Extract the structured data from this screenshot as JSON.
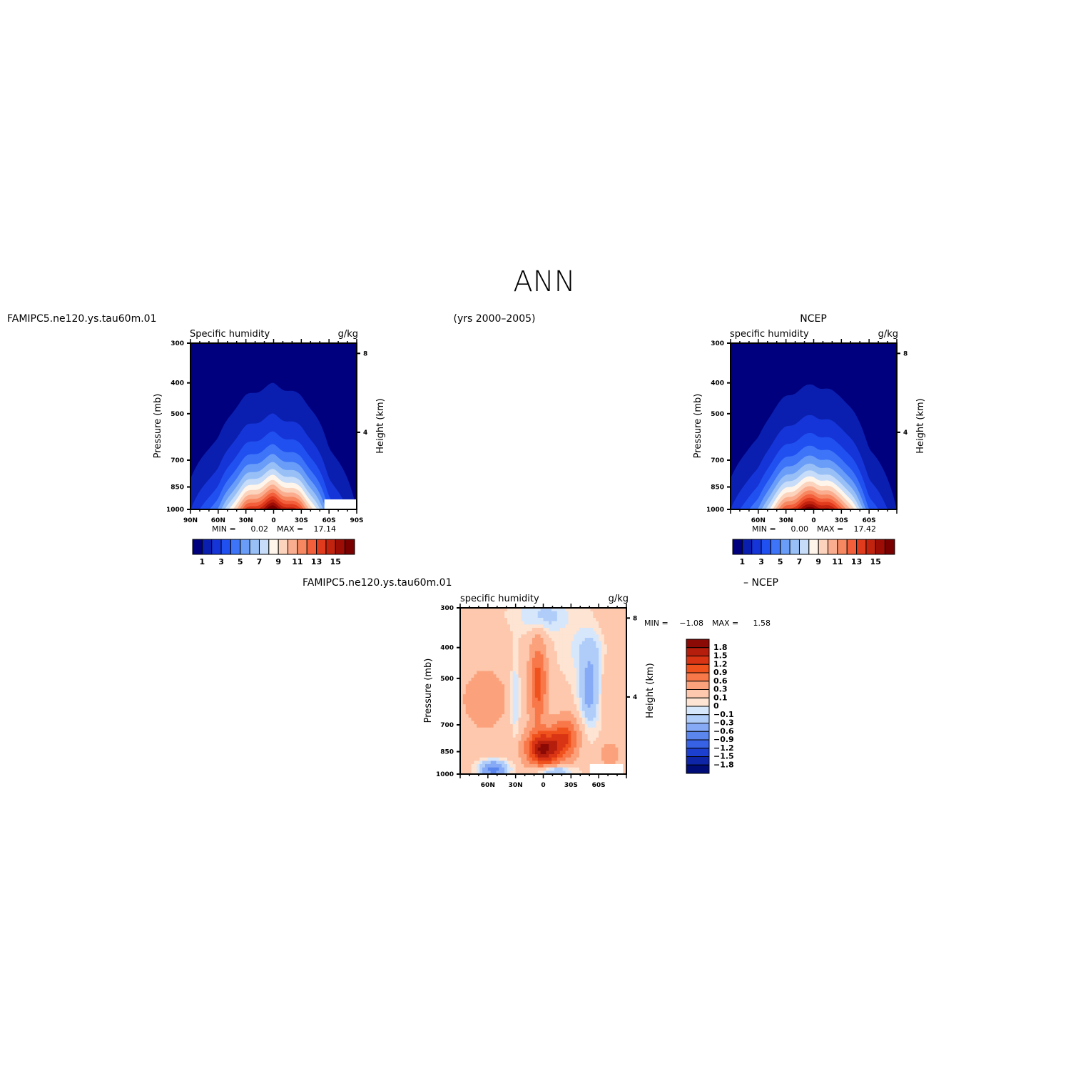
{
  "title": "ANN",
  "header": {
    "left_case": "FAMIPC5.ne120.ys.tau60m.01",
    "years": "(yrs 2000–2005)",
    "right_case": "NCEP"
  },
  "panels": [
    {
      "id": "model",
      "variable": "Specific humidity",
      "units": "g/kg",
      "ylabel": "Pressure (mb)",
      "ylabel_right": "Height (km)",
      "xticks": [
        "90N",
        "60N",
        "30N",
        "0",
        "30S",
        "60S",
        "90S"
      ],
      "stats": {
        "min_label": "MIN =",
        "min": "0.02",
        "max_label": "MAX =",
        "max": "17.14"
      }
    },
    {
      "id": "obs",
      "variable": "specific humidity",
      "units": "g/kg",
      "ylabel": "Pressure (mb)",
      "ylabel_right": "Height (km)",
      "xticks": [
        "60N",
        "30N",
        "0",
        "30S",
        "60S"
      ],
      "stats": {
        "min_label": "MIN =",
        "min": "0.00",
        "max_label": "MAX =",
        "max": "17.42"
      }
    },
    {
      "id": "diff",
      "case_label": "FAMIPC5.ne120.ys.tau60m.01",
      "minus_label": "– NCEP",
      "variable": "specific humidity",
      "units": "g/kg",
      "ylabel": "Pressure (mb)",
      "ylabel_right": "Height (km)",
      "xticks": [
        "60N",
        "30N",
        "0",
        "30S",
        "60S"
      ],
      "stats": {
        "min_label": "MIN =",
        "min": "−1.08",
        "max_label": "MAX =",
        "max": "1.58"
      }
    }
  ],
  "colorbar_main": {
    "labels": [
      "1",
      "3",
      "5",
      "7",
      "9",
      "11",
      "13",
      "15"
    ],
    "colors": [
      "#00007f",
      "#0a1faf",
      "#1535d8",
      "#2050f0",
      "#3d74f8",
      "#6a9df8",
      "#98c0f7",
      "#c6dcf8",
      "#fff5ea",
      "#fcd3bc",
      "#fbae8f",
      "#f78761",
      "#f25f3a",
      "#e03b1d",
      "#c2230f",
      "#9e0c06",
      "#7a0000"
    ]
  },
  "colorbar_diff": {
    "labels": [
      "1.8",
      "1.5",
      "1.2",
      "0.9",
      "0.6",
      "0.3",
      "0.1",
      "0",
      "−0.1",
      "−0.3",
      "−0.6",
      "−0.9",
      "−1.2",
      "−1.5",
      "−1.8"
    ],
    "colors": [
      "#8b0a05",
      "#b51e0c",
      "#d93514",
      "#f0521e",
      "#f8784a",
      "#fba27c",
      "#fdc8ad",
      "#fde4d3",
      "#d7e7fb",
      "#b0cdf9",
      "#86aaf5",
      "#5a86ee",
      "#3762e5",
      "#1c3fd0",
      "#0e25a8",
      "#000c78"
    ]
  },
  "chart_data": [
    {
      "type": "heatmap",
      "title": "Specific humidity",
      "units": "g/kg",
      "xlabel": "",
      "ylabel": "Pressure (mb)",
      "y2label": "Height (km)",
      "x_ticks": [
        "90N",
        "60N",
        "30N",
        "0",
        "30S",
        "60S",
        "90S"
      ],
      "y_ticks": [
        300,
        400,
        500,
        700,
        850,
        1000
      ],
      "y2_ticks": [
        4,
        8
      ],
      "xlim": [
        "90N",
        "90S"
      ],
      "ylim": [
        1000,
        300
      ],
      "y_scale": "log",
      "levels": [
        1,
        2,
        3,
        4,
        5,
        6,
        7,
        8,
        9,
        10,
        11,
        12,
        13,
        14,
        15,
        16
      ],
      "min": 0.02,
      "max": 17.14,
      "surface_q_by_latitude": {
        "lat": [
          90,
          60,
          30,
          0,
          -30,
          -60,
          -90
        ],
        "q": [
          2,
          5,
          13,
          17,
          13,
          4,
          1
        ]
      },
      "missing_region": {
        "lat": [
          -55,
          -90
        ],
        "pressure_mb": [
          930,
          1000
        ]
      }
    },
    {
      "type": "heatmap",
      "title": "specific humidity",
      "units": "g/kg",
      "xlabel": "",
      "ylabel": "Pressure (mb)",
      "y2label": "Height (km)",
      "x_ticks": [
        "60N",
        "30N",
        "0",
        "30S",
        "60S"
      ],
      "y_ticks": [
        300,
        400,
        500,
        700,
        850,
        1000
      ],
      "y2_ticks": [
        4,
        8
      ],
      "ylim": [
        1000,
        300
      ],
      "y_scale": "log",
      "levels": [
        1,
        2,
        3,
        4,
        5,
        6,
        7,
        8,
        9,
        10,
        11,
        12,
        13,
        14,
        15,
        16
      ],
      "min": 0.0,
      "max": 17.42,
      "surface_q_by_latitude": {
        "lat": [
          90,
          60,
          30,
          0,
          -30,
          -60,
          -90
        ],
        "q": [
          2,
          5,
          13,
          17,
          13,
          4,
          1
        ]
      }
    },
    {
      "type": "heatmap",
      "title": "specific humidity",
      "units": "g/kg",
      "xlabel": "",
      "ylabel": "Pressure (mb)",
      "y2label": "Height (km)",
      "x_ticks": [
        "60N",
        "30N",
        "0",
        "30S",
        "60S"
      ],
      "y_ticks": [
        300,
        400,
        500,
        700,
        850,
        1000
      ],
      "y2_ticks": [
        4,
        8
      ],
      "ylim": [
        1000,
        300
      ],
      "y_scale": "log",
      "levels": [
        -1.8,
        -1.5,
        -1.2,
        -0.9,
        -0.6,
        -0.3,
        -0.1,
        0,
        0.1,
        0.3,
        0.6,
        0.9,
        1.2,
        1.5,
        1.8
      ],
      "min": -1.08,
      "max": 1.58
    }
  ]
}
